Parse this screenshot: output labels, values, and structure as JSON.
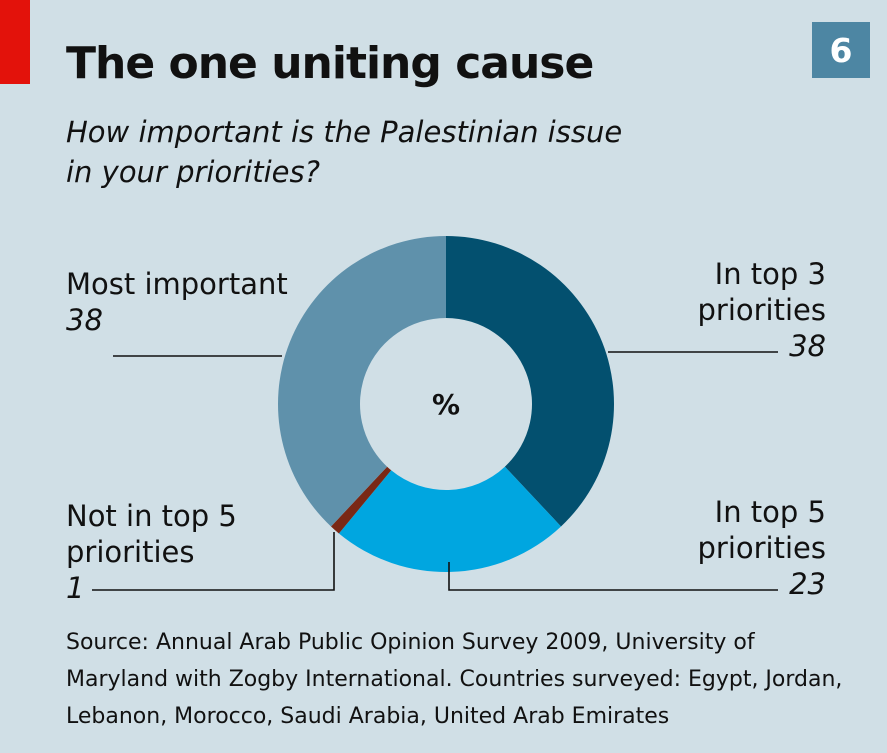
{
  "header": {
    "title": "The one uniting cause",
    "subtitle": "How important is the Palestinian issue in your priorities?",
    "badge": "6"
  },
  "footer": {
    "source": "Source: Annual Arab Public Opinion Survey 2009, University of Maryland with Zogby International. Countries surveyed: Egypt, Jordan, Lebanon, Morocco, Saudi Arabia, United Arab Emirates"
  },
  "chart_data": {
    "type": "pie",
    "donut": true,
    "center_label": "%",
    "slices": [
      {
        "label": "In top 3 priorities",
        "value": 38,
        "color": "#03506f"
      },
      {
        "label": "In top 5 priorities",
        "value": 23,
        "color": "#00a6e0"
      },
      {
        "label": "Not in top 5 priorities",
        "value": 1,
        "color": "#7a2815"
      },
      {
        "label": "Most important",
        "value": 38,
        "color": "#5f91ab"
      }
    ]
  }
}
